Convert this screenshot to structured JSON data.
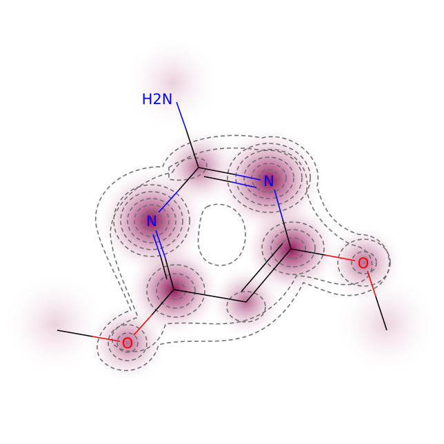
{
  "molecule": {
    "amine_label": "H2N",
    "ring_n1_label": "N",
    "ring_n3_label": "N",
    "methoxy_o_left_label": "O",
    "methoxy_o_right_label": "O"
  },
  "colors": {
    "carbon_bond": "#000000",
    "nitrogen": "#0000ff",
    "oxygen": "#ff0000",
    "contour": "#6e6e6e",
    "density_peak": "#8b0a50"
  }
}
